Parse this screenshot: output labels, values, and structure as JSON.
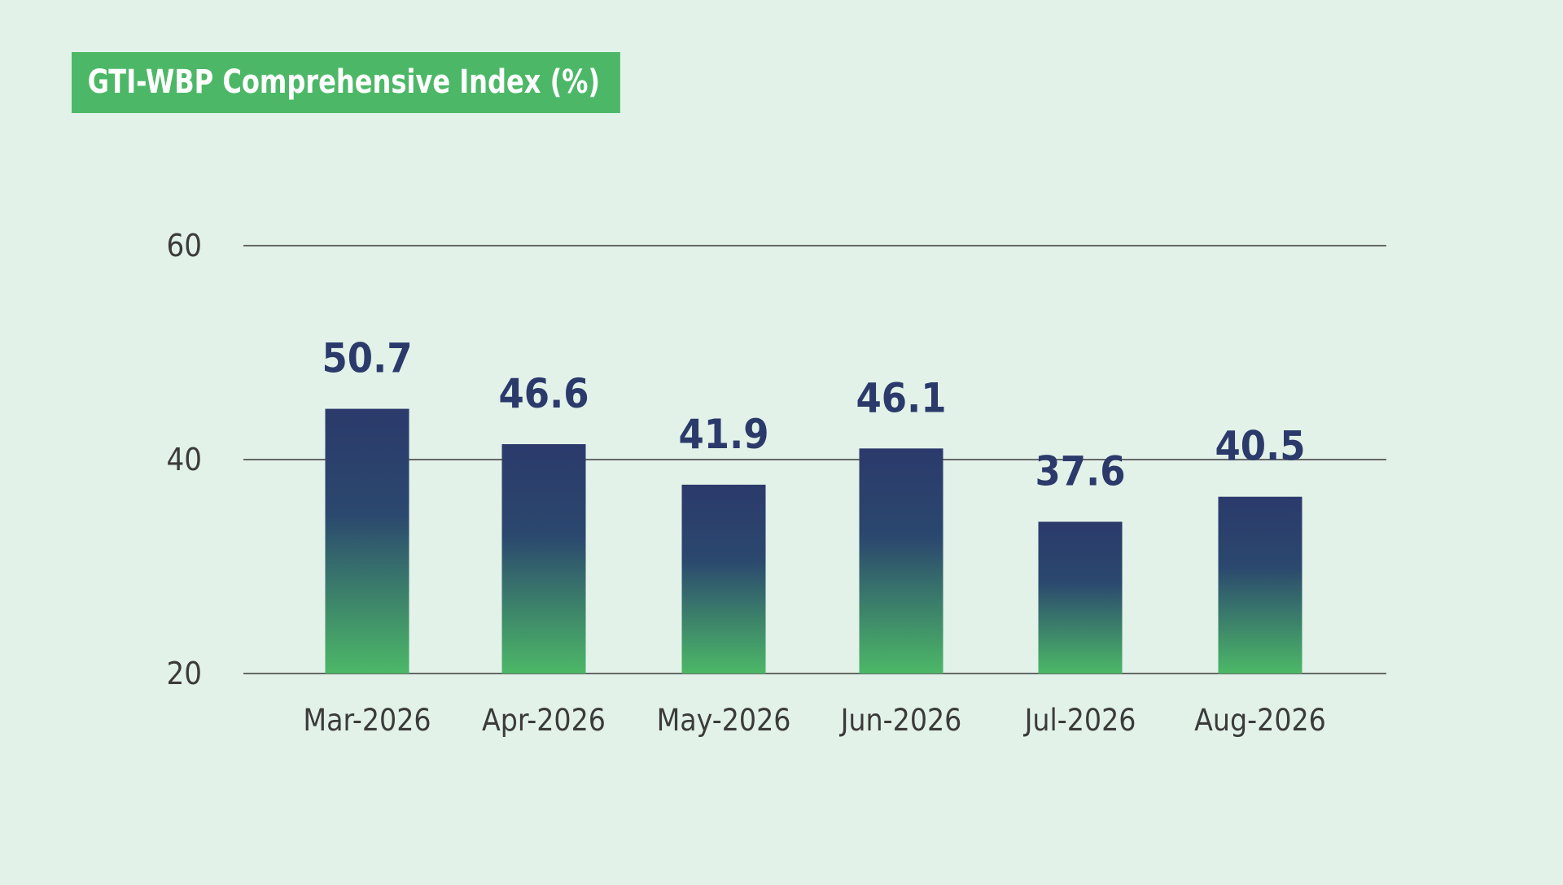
{
  "chart_data": {
    "type": "bar",
    "title": "GTI-WBP Comprehensive Index (%)",
    "categories": [
      "Mar-2026",
      "Apr-2026",
      "May-2026",
      "Jun-2026",
      "Jul-2026",
      "Aug-2026"
    ],
    "values": [
      50.7,
      46.6,
      41.9,
      46.1,
      37.6,
      40.5
    ],
    "data_labels": [
      "50.7",
      "46.6",
      "41.9",
      "46.1",
      "37.6",
      "40.5"
    ],
    "yticks": [
      20,
      40,
      60
    ],
    "ylim": [
      20,
      60
    ],
    "grid": true,
    "legend": "none",
    "colors": {
      "title_bg": "#4cb867",
      "bar_top": "#2b3a6b",
      "bar_bottom": "#4cb867",
      "data_label": "#2b3a6b",
      "gridline": "#3a3a3a",
      "background": "#e2f2e8"
    }
  }
}
